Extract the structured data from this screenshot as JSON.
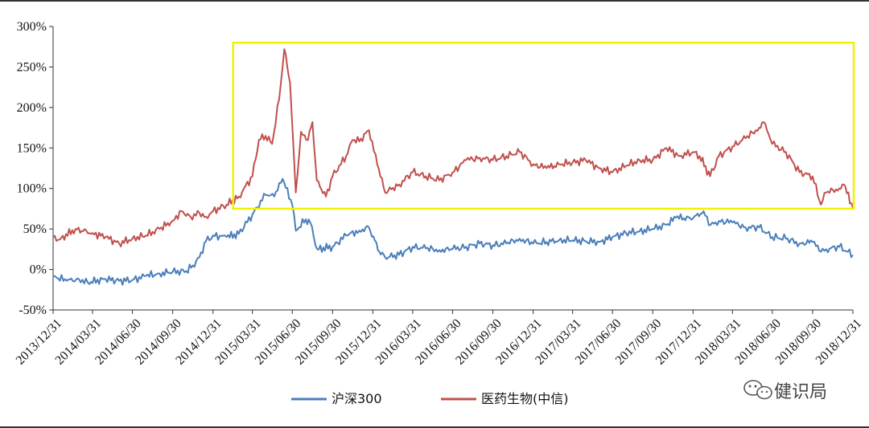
{
  "chart_data": {
    "type": "line",
    "title": "",
    "xlabel": "",
    "ylabel": "",
    "ylim": [
      -50,
      300
    ],
    "yticks": [
      "300%",
      "250%",
      "200%",
      "150%",
      "100%",
      "50%",
      "0%",
      "-50%"
    ],
    "ytick_values": [
      300,
      250,
      200,
      150,
      100,
      50,
      0,
      -50
    ],
    "xlim": [
      "2013-12-31",
      "2018-12-31"
    ],
    "xticks": [
      "2013/12/31",
      "2014/03/31",
      "2014/06/30",
      "2014/09/30",
      "2014/12/31",
      "2015/03/31",
      "2015/06/30",
      "2015/09/30",
      "2015/12/31",
      "2016/03/31",
      "2016/06/30",
      "2016/09/30",
      "2016/12/31",
      "2017/03/31",
      "2017/06/30",
      "2017/09/30",
      "2017/12/31",
      "2018/03/31",
      "2018/06/30",
      "2018/09/30",
      "2018/12/31"
    ],
    "legend": {
      "position": "bottom-center"
    },
    "highlight_box": {
      "color": "#f2f200",
      "x_range": [
        "2015-02-15",
        "2018-12-31"
      ],
      "y_range": [
        75,
        280
      ]
    },
    "series": [
      {
        "name": "沪深300",
        "color": "#4a7ebb",
        "points": [
          [
            "2013-12-31",
            -8
          ],
          [
            "2014-01-31",
            -14
          ],
          [
            "2014-02-28",
            -12
          ],
          [
            "2014-03-20",
            -16
          ],
          [
            "2014-04-30",
            -12
          ],
          [
            "2014-05-31",
            -14
          ],
          [
            "2014-06-30",
            -13
          ],
          [
            "2014-07-31",
            -8
          ],
          [
            "2014-08-31",
            -5
          ],
          [
            "2014-09-30",
            -3
          ],
          [
            "2014-10-31",
            -2
          ],
          [
            "2014-11-15",
            5
          ],
          [
            "2014-11-30",
            15
          ],
          [
            "2014-12-15",
            35
          ],
          [
            "2014-12-31",
            42
          ],
          [
            "2015-01-31",
            40
          ],
          [
            "2015-02-28",
            44
          ],
          [
            "2015-03-31",
            68
          ],
          [
            "2015-04-30",
            92
          ],
          [
            "2015-05-20",
            90
          ],
          [
            "2015-06-08",
            112
          ],
          [
            "2015-06-30",
            80
          ],
          [
            "2015-07-08",
            48
          ],
          [
            "2015-07-31",
            62
          ],
          [
            "2015-08-10",
            58
          ],
          [
            "2015-08-26",
            25
          ],
          [
            "2015-09-30",
            28
          ],
          [
            "2015-10-31",
            42
          ],
          [
            "2015-11-30",
            48
          ],
          [
            "2015-12-22",
            52
          ],
          [
            "2016-01-15",
            22
          ],
          [
            "2016-01-28",
            15
          ],
          [
            "2016-02-29",
            18
          ],
          [
            "2016-03-31",
            28
          ],
          [
            "2016-04-30",
            26
          ],
          [
            "2016-05-31",
            24
          ],
          [
            "2016-06-30",
            25
          ],
          [
            "2016-07-31",
            28
          ],
          [
            "2016-08-31",
            32
          ],
          [
            "2016-09-30",
            30
          ],
          [
            "2016-10-31",
            32
          ],
          [
            "2016-11-30",
            38
          ],
          [
            "2016-12-31",
            32
          ],
          [
            "2017-01-31",
            34
          ],
          [
            "2017-02-28",
            36
          ],
          [
            "2017-03-31",
            36
          ],
          [
            "2017-04-30",
            35
          ],
          [
            "2017-05-31",
            34
          ],
          [
            "2017-06-30",
            40
          ],
          [
            "2017-07-31",
            45
          ],
          [
            "2017-08-31",
            47
          ],
          [
            "2017-09-30",
            50
          ],
          [
            "2017-10-31",
            55
          ],
          [
            "2017-11-22",
            64
          ],
          [
            "2017-12-31",
            63
          ],
          [
            "2018-01-24",
            72
          ],
          [
            "2018-02-09",
            55
          ],
          [
            "2018-02-28",
            60
          ],
          [
            "2018-03-31",
            58
          ],
          [
            "2018-04-30",
            52
          ],
          [
            "2018-05-31",
            52
          ],
          [
            "2018-06-30",
            40
          ],
          [
            "2018-07-31",
            38
          ],
          [
            "2018-08-31",
            32
          ],
          [
            "2018-09-30",
            34
          ],
          [
            "2018-10-19",
            22
          ],
          [
            "2018-10-31",
            25
          ],
          [
            "2018-11-30",
            28
          ],
          [
            "2018-12-31",
            18
          ]
        ]
      },
      {
        "name": "医药生物(中信)",
        "color": "#c0504d",
        "points": [
          [
            "2013-12-31",
            40
          ],
          [
            "2014-01-15",
            37
          ],
          [
            "2014-02-20",
            50
          ],
          [
            "2014-03-31",
            45
          ],
          [
            "2014-04-30",
            40
          ],
          [
            "2014-05-31",
            32
          ],
          [
            "2014-06-30",
            38
          ],
          [
            "2014-07-31",
            42
          ],
          [
            "2014-08-31",
            50
          ],
          [
            "2014-09-30",
            60
          ],
          [
            "2014-10-20",
            72
          ],
          [
            "2014-11-10",
            65
          ],
          [
            "2014-11-30",
            70
          ],
          [
            "2014-12-15",
            65
          ],
          [
            "2014-12-31",
            72
          ],
          [
            "2015-01-31",
            80
          ],
          [
            "2015-02-28",
            90
          ],
          [
            "2015-03-31",
            115
          ],
          [
            "2015-04-15",
            160
          ],
          [
            "2015-04-30",
            165
          ],
          [
            "2015-05-15",
            155
          ],
          [
            "2015-05-31",
            210
          ],
          [
            "2015-06-12",
            272
          ],
          [
            "2015-06-25",
            230
          ],
          [
            "2015-07-08",
            95
          ],
          [
            "2015-07-20",
            170
          ],
          [
            "2015-08-05",
            160
          ],
          [
            "2015-08-15",
            182
          ],
          [
            "2015-08-25",
            110
          ],
          [
            "2015-09-15",
            90
          ],
          [
            "2015-09-30",
            115
          ],
          [
            "2015-10-31",
            140
          ],
          [
            "2015-11-15",
            160
          ],
          [
            "2015-11-30",
            158
          ],
          [
            "2015-12-22",
            172
          ],
          [
            "2016-01-10",
            130
          ],
          [
            "2016-01-28",
            95
          ],
          [
            "2016-02-29",
            105
          ],
          [
            "2016-03-31",
            120
          ],
          [
            "2016-04-30",
            115
          ],
          [
            "2016-05-31",
            110
          ],
          [
            "2016-06-30",
            120
          ],
          [
            "2016-07-31",
            135
          ],
          [
            "2016-08-31",
            138
          ],
          [
            "2016-09-30",
            135
          ],
          [
            "2016-10-31",
            140
          ],
          [
            "2016-11-30",
            145
          ],
          [
            "2016-12-31",
            130
          ],
          [
            "2017-01-31",
            125
          ],
          [
            "2017-02-28",
            130
          ],
          [
            "2017-03-31",
            132
          ],
          [
            "2017-04-30",
            135
          ],
          [
            "2017-05-31",
            125
          ],
          [
            "2017-06-30",
            120
          ],
          [
            "2017-07-31",
            128
          ],
          [
            "2017-08-31",
            135
          ],
          [
            "2017-09-30",
            135
          ],
          [
            "2017-10-31",
            150
          ],
          [
            "2017-11-30",
            140
          ],
          [
            "2017-12-31",
            145
          ],
          [
            "2018-01-15",
            140
          ],
          [
            "2018-02-08",
            115
          ],
          [
            "2018-02-28",
            140
          ],
          [
            "2018-03-31",
            152
          ],
          [
            "2018-04-30",
            162
          ],
          [
            "2018-05-31",
            175
          ],
          [
            "2018-06-10",
            182
          ],
          [
            "2018-06-30",
            155
          ],
          [
            "2018-07-31",
            145
          ],
          [
            "2018-08-31",
            120
          ],
          [
            "2018-09-30",
            115
          ],
          [
            "2018-10-19",
            80
          ],
          [
            "2018-10-31",
            95
          ],
          [
            "2018-11-30",
            100
          ],
          [
            "2018-12-10",
            105
          ],
          [
            "2018-12-31",
            76
          ]
        ]
      }
    ]
  },
  "watermark": {
    "text": "健识局",
    "icon": "wechat-icon"
  }
}
